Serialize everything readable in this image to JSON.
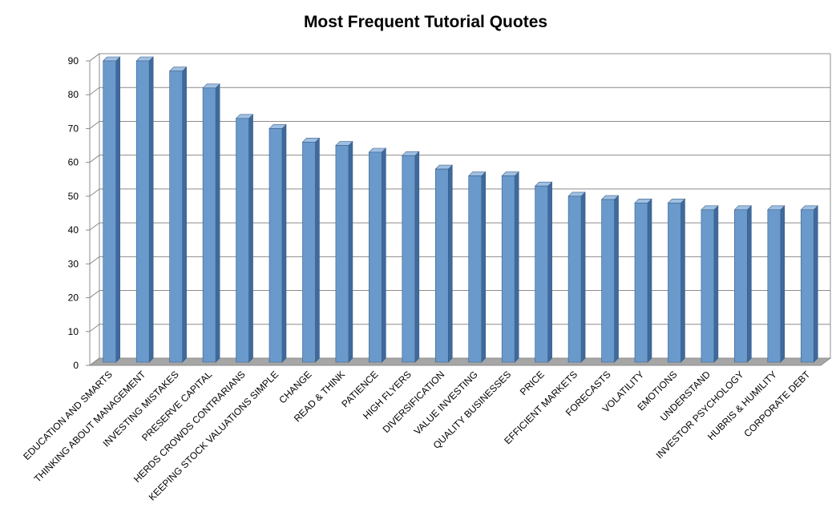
{
  "chart_data": {
    "type": "bar3d",
    "title": "Most Frequent Tutorial Quotes",
    "categories": [
      "EDUCATION AND SMARTS",
      "THINKING ABOUT MANAGEMENT",
      "INVESTING MISTAKES",
      "PRESERVE CAPITAL",
      "HERDS CROWDS CONTRARIANS",
      "KEEPING STOCK VALUATIONS SIMPLE",
      "CHANGE",
      "READ & THINK",
      "PATIENCE",
      "HIGH FLYERS",
      "DIVERSIFICATION",
      "VALUE INVESTING",
      "QUALITY BUSINESSES",
      "PRICE",
      "EFFICIENT MARKETS",
      "FORECASTS",
      "VOLATILITY",
      "EMOTIONS",
      "UNDERSTAND",
      "INVESTOR PSYCHOLOGY",
      "HUBRIS & HUMILITY",
      "CORPORATE DEBT"
    ],
    "values": [
      90,
      90,
      87,
      82,
      73,
      70,
      66,
      65,
      63,
      62,
      58,
      56,
      56,
      53,
      50,
      49,
      48,
      48,
      46,
      46,
      46,
      46
    ],
    "color": "#6a99cb",
    "ylim": [
      0,
      90
    ],
    "yticks": [
      0,
      10,
      20,
      30,
      40,
      50,
      60,
      70,
      80,
      90
    ],
    "grid": true
  }
}
